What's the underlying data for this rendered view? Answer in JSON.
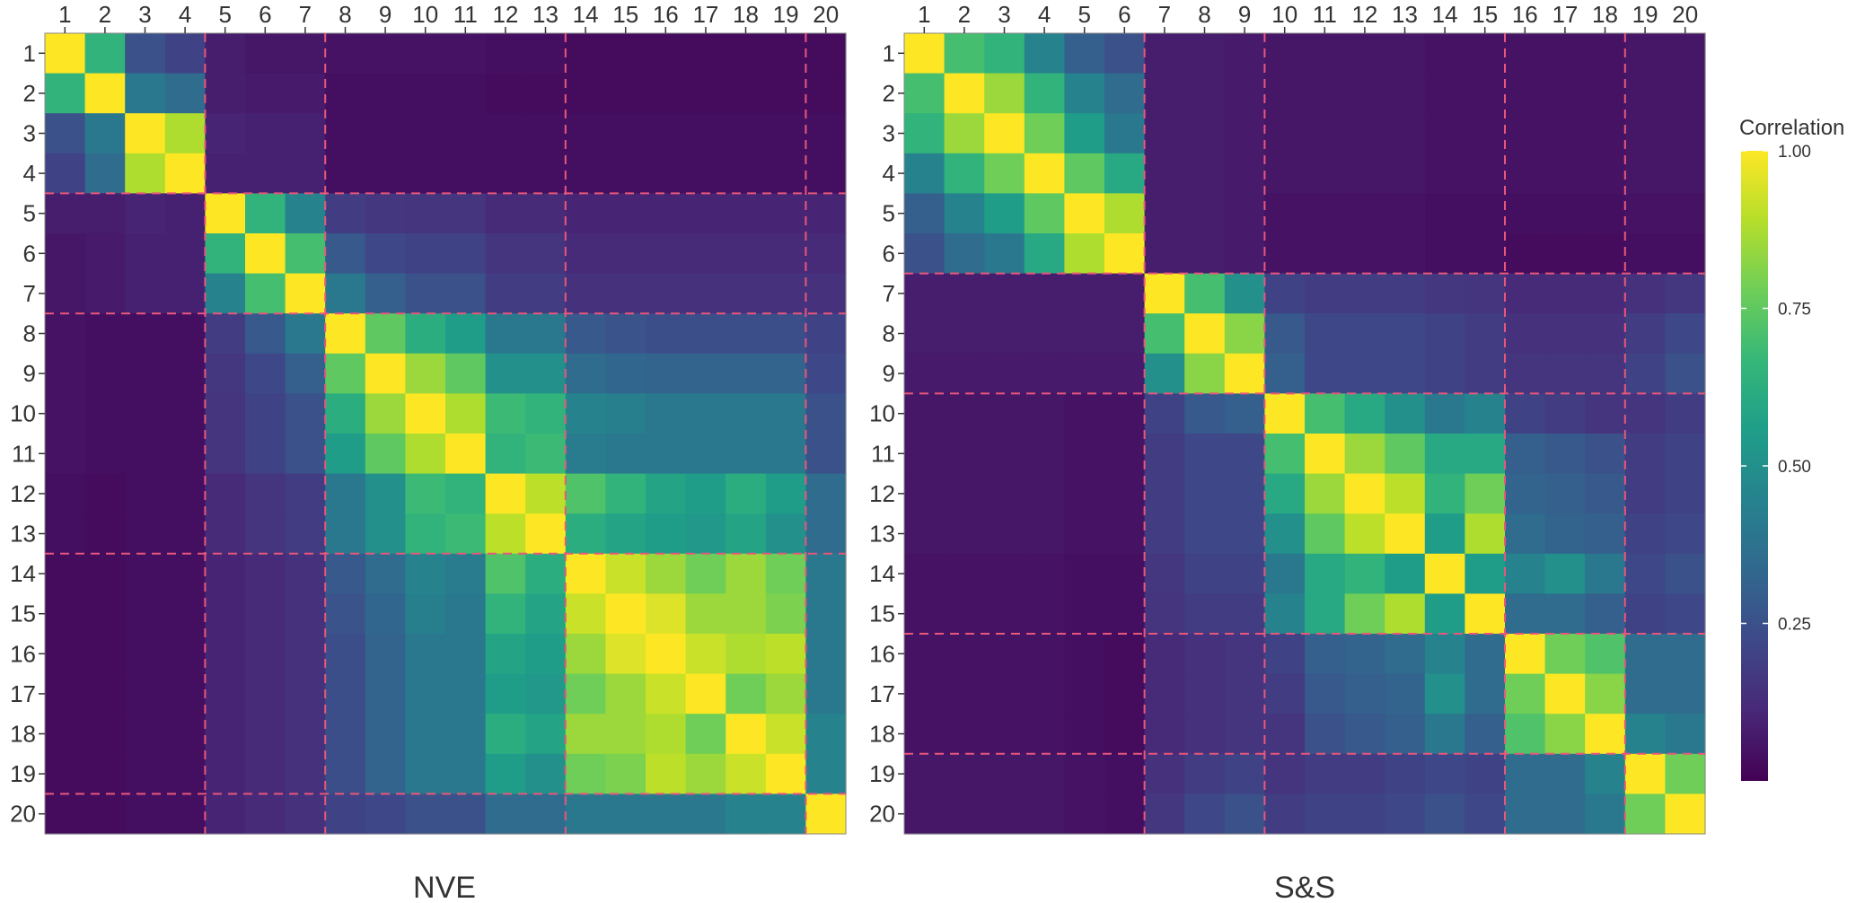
{
  "colors": {
    "viridis": [
      "#440154",
      "#482878",
      "#3e4989",
      "#31688e",
      "#26828e",
      "#1f9e89",
      "#35b779",
      "#6ece58",
      "#b5de2b",
      "#fde725"
    ],
    "divider": "#e8577a",
    "tick": "#333333"
  },
  "chart_data": [
    {
      "type": "heatmap",
      "title": "NVE",
      "row_labels": [
        "1",
        "2",
        "3",
        "4",
        "5",
        "6",
        "7",
        "8",
        "9",
        "10",
        "11",
        "12",
        "13",
        "14",
        "15",
        "16",
        "17",
        "18",
        "19",
        "20"
      ],
      "col_labels": [
        "1",
        "2",
        "3",
        "4",
        "5",
        "6",
        "7",
        "8",
        "9",
        "10",
        "11",
        "12",
        "13",
        "14",
        "15",
        "16",
        "17",
        "18",
        "19",
        "20"
      ],
      "x_axis_position": "top",
      "group_boundaries_after": [
        4,
        7,
        13,
        19
      ],
      "values": [
        [
          1.0,
          0.65,
          0.25,
          0.2,
          0.08,
          0.06,
          0.06,
          0.05,
          0.05,
          0.05,
          0.05,
          0.04,
          0.04,
          0.03,
          0.03,
          0.03,
          0.03,
          0.03,
          0.03,
          0.03
        ],
        [
          0.65,
          1.0,
          0.4,
          0.35,
          0.08,
          0.07,
          0.07,
          0.04,
          0.04,
          0.04,
          0.04,
          0.03,
          0.03,
          0.03,
          0.03,
          0.03,
          0.03,
          0.03,
          0.03,
          0.03
        ],
        [
          0.25,
          0.4,
          1.0,
          0.88,
          0.1,
          0.09,
          0.09,
          0.04,
          0.04,
          0.04,
          0.04,
          0.04,
          0.04,
          0.04,
          0.04,
          0.04,
          0.04,
          0.04,
          0.04,
          0.04
        ],
        [
          0.2,
          0.35,
          0.88,
          1.0,
          0.09,
          0.09,
          0.09,
          0.04,
          0.04,
          0.04,
          0.04,
          0.04,
          0.04,
          0.04,
          0.04,
          0.04,
          0.04,
          0.04,
          0.04,
          0.04
        ],
        [
          0.08,
          0.08,
          0.1,
          0.09,
          1.0,
          0.65,
          0.45,
          0.18,
          0.16,
          0.15,
          0.15,
          0.12,
          0.12,
          0.1,
          0.1,
          0.1,
          0.1,
          0.1,
          0.1,
          0.1
        ],
        [
          0.06,
          0.07,
          0.09,
          0.09,
          0.65,
          1.0,
          0.7,
          0.28,
          0.22,
          0.2,
          0.2,
          0.15,
          0.15,
          0.12,
          0.12,
          0.12,
          0.12,
          0.12,
          0.12,
          0.12
        ],
        [
          0.06,
          0.07,
          0.09,
          0.09,
          0.45,
          0.7,
          1.0,
          0.4,
          0.3,
          0.25,
          0.25,
          0.18,
          0.18,
          0.14,
          0.14,
          0.14,
          0.14,
          0.14,
          0.14,
          0.14
        ],
        [
          0.05,
          0.04,
          0.04,
          0.04,
          0.18,
          0.28,
          0.4,
          1.0,
          0.75,
          0.62,
          0.55,
          0.4,
          0.4,
          0.28,
          0.26,
          0.24,
          0.24,
          0.24,
          0.24,
          0.2
        ],
        [
          0.05,
          0.04,
          0.04,
          0.04,
          0.16,
          0.22,
          0.3,
          0.75,
          1.0,
          0.85,
          0.75,
          0.5,
          0.5,
          0.35,
          0.33,
          0.32,
          0.32,
          0.32,
          0.32,
          0.22
        ],
        [
          0.05,
          0.04,
          0.04,
          0.04,
          0.15,
          0.2,
          0.25,
          0.62,
          0.85,
          1.0,
          0.88,
          0.68,
          0.65,
          0.45,
          0.43,
          0.4,
          0.4,
          0.4,
          0.4,
          0.25
        ],
        [
          0.05,
          0.04,
          0.04,
          0.04,
          0.15,
          0.2,
          0.25,
          0.55,
          0.75,
          0.88,
          1.0,
          0.65,
          0.68,
          0.42,
          0.4,
          0.4,
          0.4,
          0.4,
          0.4,
          0.25
        ],
        [
          0.04,
          0.03,
          0.04,
          0.04,
          0.12,
          0.15,
          0.18,
          0.4,
          0.5,
          0.68,
          0.65,
          1.0,
          0.9,
          0.72,
          0.65,
          0.58,
          0.55,
          0.62,
          0.55,
          0.35
        ],
        [
          0.04,
          0.03,
          0.04,
          0.04,
          0.12,
          0.15,
          0.18,
          0.4,
          0.5,
          0.65,
          0.68,
          0.9,
          1.0,
          0.62,
          0.58,
          0.55,
          0.53,
          0.58,
          0.5,
          0.35
        ],
        [
          0.03,
          0.03,
          0.04,
          0.04,
          0.1,
          0.12,
          0.14,
          0.28,
          0.35,
          0.45,
          0.42,
          0.72,
          0.62,
          1.0,
          0.92,
          0.85,
          0.78,
          0.85,
          0.78,
          0.4
        ],
        [
          0.03,
          0.03,
          0.04,
          0.04,
          0.1,
          0.12,
          0.14,
          0.26,
          0.33,
          0.43,
          0.4,
          0.65,
          0.58,
          0.92,
          1.0,
          0.95,
          0.85,
          0.85,
          0.8,
          0.4
        ],
        [
          0.03,
          0.03,
          0.04,
          0.04,
          0.1,
          0.12,
          0.14,
          0.24,
          0.32,
          0.4,
          0.4,
          0.58,
          0.55,
          0.85,
          0.95,
          1.0,
          0.92,
          0.88,
          0.9,
          0.4
        ],
        [
          0.03,
          0.03,
          0.04,
          0.04,
          0.1,
          0.12,
          0.14,
          0.24,
          0.32,
          0.4,
          0.4,
          0.55,
          0.53,
          0.78,
          0.85,
          0.92,
          1.0,
          0.78,
          0.85,
          0.4
        ],
        [
          0.03,
          0.03,
          0.04,
          0.04,
          0.1,
          0.12,
          0.14,
          0.24,
          0.32,
          0.4,
          0.4,
          0.62,
          0.58,
          0.85,
          0.85,
          0.88,
          0.78,
          1.0,
          0.92,
          0.45
        ],
        [
          0.03,
          0.03,
          0.04,
          0.04,
          0.1,
          0.12,
          0.14,
          0.24,
          0.32,
          0.4,
          0.4,
          0.55,
          0.5,
          0.78,
          0.8,
          0.9,
          0.85,
          0.92,
          1.0,
          0.45
        ],
        [
          0.03,
          0.03,
          0.04,
          0.04,
          0.1,
          0.12,
          0.14,
          0.2,
          0.22,
          0.25,
          0.25,
          0.35,
          0.35,
          0.4,
          0.4,
          0.4,
          0.4,
          0.45,
          0.45,
          1.0
        ]
      ]
    },
    {
      "type": "heatmap",
      "title": "S&S",
      "row_labels": [
        "1",
        "2",
        "3",
        "4",
        "5",
        "6",
        "7",
        "8",
        "9",
        "10",
        "11",
        "12",
        "13",
        "14",
        "15",
        "16",
        "17",
        "18",
        "19",
        "20"
      ],
      "col_labels": [
        "1",
        "2",
        "3",
        "4",
        "5",
        "6",
        "7",
        "8",
        "9",
        "10",
        "11",
        "12",
        "13",
        "14",
        "15",
        "16",
        "17",
        "18",
        "19",
        "20"
      ],
      "x_axis_position": "top",
      "group_boundaries_after": [
        6,
        9,
        15,
        18
      ],
      "values": [
        [
          1.0,
          0.7,
          0.65,
          0.45,
          0.3,
          0.25,
          0.08,
          0.08,
          0.07,
          0.06,
          0.06,
          0.06,
          0.06,
          0.05,
          0.05,
          0.05,
          0.05,
          0.05,
          0.06,
          0.06
        ],
        [
          0.7,
          1.0,
          0.85,
          0.65,
          0.45,
          0.35,
          0.08,
          0.08,
          0.07,
          0.06,
          0.06,
          0.06,
          0.06,
          0.05,
          0.05,
          0.05,
          0.05,
          0.05,
          0.06,
          0.06
        ],
        [
          0.65,
          0.85,
          1.0,
          0.78,
          0.55,
          0.4,
          0.08,
          0.08,
          0.07,
          0.06,
          0.06,
          0.06,
          0.06,
          0.05,
          0.05,
          0.05,
          0.05,
          0.05,
          0.06,
          0.06
        ],
        [
          0.45,
          0.65,
          0.78,
          1.0,
          0.75,
          0.6,
          0.08,
          0.08,
          0.07,
          0.06,
          0.06,
          0.06,
          0.06,
          0.05,
          0.05,
          0.05,
          0.05,
          0.05,
          0.06,
          0.06
        ],
        [
          0.3,
          0.45,
          0.55,
          0.75,
          1.0,
          0.88,
          0.08,
          0.08,
          0.07,
          0.05,
          0.05,
          0.05,
          0.05,
          0.04,
          0.04,
          0.04,
          0.04,
          0.04,
          0.05,
          0.05
        ],
        [
          0.25,
          0.35,
          0.4,
          0.6,
          0.88,
          1.0,
          0.08,
          0.08,
          0.07,
          0.05,
          0.05,
          0.05,
          0.05,
          0.04,
          0.04,
          0.03,
          0.03,
          0.03,
          0.04,
          0.04
        ],
        [
          0.08,
          0.08,
          0.08,
          0.08,
          0.08,
          0.08,
          1.0,
          0.7,
          0.5,
          0.2,
          0.18,
          0.18,
          0.18,
          0.16,
          0.15,
          0.12,
          0.12,
          0.12,
          0.14,
          0.16
        ],
        [
          0.08,
          0.08,
          0.08,
          0.08,
          0.08,
          0.08,
          0.7,
          1.0,
          0.82,
          0.28,
          0.22,
          0.22,
          0.22,
          0.2,
          0.18,
          0.14,
          0.14,
          0.14,
          0.18,
          0.22
        ],
        [
          0.07,
          0.07,
          0.07,
          0.07,
          0.07,
          0.07,
          0.5,
          0.82,
          1.0,
          0.3,
          0.22,
          0.22,
          0.22,
          0.2,
          0.18,
          0.15,
          0.15,
          0.15,
          0.2,
          0.25
        ],
        [
          0.06,
          0.06,
          0.06,
          0.06,
          0.05,
          0.05,
          0.2,
          0.28,
          0.3,
          1.0,
          0.7,
          0.6,
          0.5,
          0.4,
          0.45,
          0.2,
          0.18,
          0.15,
          0.15,
          0.18
        ],
        [
          0.06,
          0.06,
          0.06,
          0.06,
          0.05,
          0.05,
          0.18,
          0.22,
          0.22,
          0.7,
          1.0,
          0.85,
          0.75,
          0.6,
          0.6,
          0.3,
          0.28,
          0.25,
          0.18,
          0.2
        ],
        [
          0.06,
          0.06,
          0.06,
          0.06,
          0.05,
          0.05,
          0.18,
          0.22,
          0.22,
          0.6,
          0.85,
          1.0,
          0.9,
          0.65,
          0.78,
          0.32,
          0.3,
          0.28,
          0.18,
          0.2
        ],
        [
          0.06,
          0.06,
          0.06,
          0.06,
          0.05,
          0.05,
          0.18,
          0.22,
          0.22,
          0.5,
          0.75,
          0.9,
          1.0,
          0.55,
          0.88,
          0.35,
          0.32,
          0.3,
          0.2,
          0.22
        ],
        [
          0.05,
          0.05,
          0.05,
          0.05,
          0.04,
          0.04,
          0.16,
          0.2,
          0.2,
          0.4,
          0.6,
          0.65,
          0.55,
          1.0,
          0.55,
          0.45,
          0.5,
          0.4,
          0.22,
          0.25
        ],
        [
          0.05,
          0.05,
          0.05,
          0.05,
          0.04,
          0.04,
          0.15,
          0.18,
          0.18,
          0.45,
          0.6,
          0.78,
          0.88,
          0.55,
          1.0,
          0.35,
          0.35,
          0.3,
          0.2,
          0.22
        ],
        [
          0.05,
          0.05,
          0.05,
          0.05,
          0.04,
          0.03,
          0.12,
          0.14,
          0.15,
          0.2,
          0.3,
          0.32,
          0.35,
          0.45,
          0.35,
          1.0,
          0.78,
          0.72,
          0.35,
          0.35
        ],
        [
          0.05,
          0.05,
          0.05,
          0.05,
          0.04,
          0.03,
          0.12,
          0.14,
          0.15,
          0.18,
          0.28,
          0.3,
          0.32,
          0.5,
          0.35,
          0.78,
          1.0,
          0.82,
          0.35,
          0.35
        ],
        [
          0.05,
          0.05,
          0.05,
          0.05,
          0.04,
          0.03,
          0.12,
          0.14,
          0.15,
          0.15,
          0.25,
          0.28,
          0.3,
          0.4,
          0.3,
          0.72,
          0.82,
          1.0,
          0.45,
          0.4
        ],
        [
          0.06,
          0.06,
          0.06,
          0.06,
          0.05,
          0.04,
          0.14,
          0.18,
          0.2,
          0.15,
          0.18,
          0.18,
          0.2,
          0.22,
          0.2,
          0.35,
          0.35,
          0.45,
          1.0,
          0.78
        ],
        [
          0.06,
          0.06,
          0.06,
          0.06,
          0.05,
          0.04,
          0.16,
          0.22,
          0.25,
          0.18,
          0.2,
          0.2,
          0.22,
          0.25,
          0.22,
          0.35,
          0.35,
          0.4,
          0.78,
          1.0
        ]
      ]
    }
  ],
  "legend": {
    "title": "Correlation",
    "range": [
      0.0,
      1.0
    ],
    "tick_values": [
      1.0,
      0.75,
      0.5,
      0.25
    ],
    "tick_labels": [
      "1.00",
      "0.75",
      "0.50",
      "0.25"
    ]
  }
}
